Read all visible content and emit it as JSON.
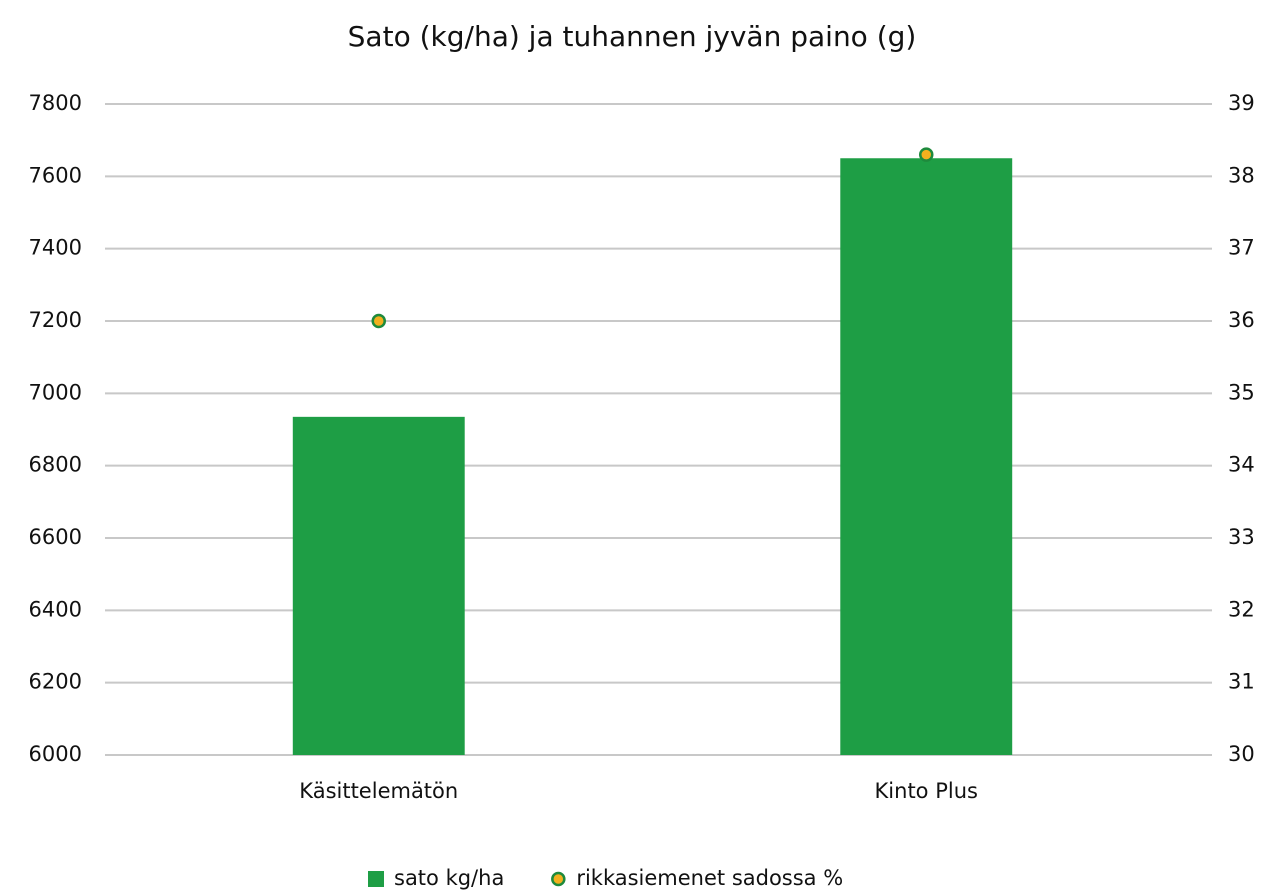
{
  "chart_data": {
    "type": "bar",
    "title": "Sato (kg/ha) ja tuhannen jyvän paino (g)",
    "categories": [
      "Käsittelemätön",
      "Kinto Plus"
    ],
    "series": [
      {
        "name": "sato kg/ha",
        "type": "bar",
        "color": "#1e9e45",
        "values": [
          6935,
          7650
        ]
      },
      {
        "name": "rikkasiemenet sadossa %",
        "type": "scatter",
        "axis": "y2",
        "color": "#f2b01e",
        "values": [
          36.0,
          38.3
        ]
      }
    ],
    "ylim": [
      6000,
      7800
    ],
    "yticks": [
      6000,
      6200,
      6400,
      6600,
      6800,
      7000,
      7200,
      7400,
      7600,
      7800
    ],
    "y2lim": [
      30,
      39
    ],
    "y2ticks": [
      30,
      31,
      32,
      33,
      34,
      35,
      36,
      37,
      38,
      39
    ],
    "grid": true,
    "legend": "bottom"
  }
}
